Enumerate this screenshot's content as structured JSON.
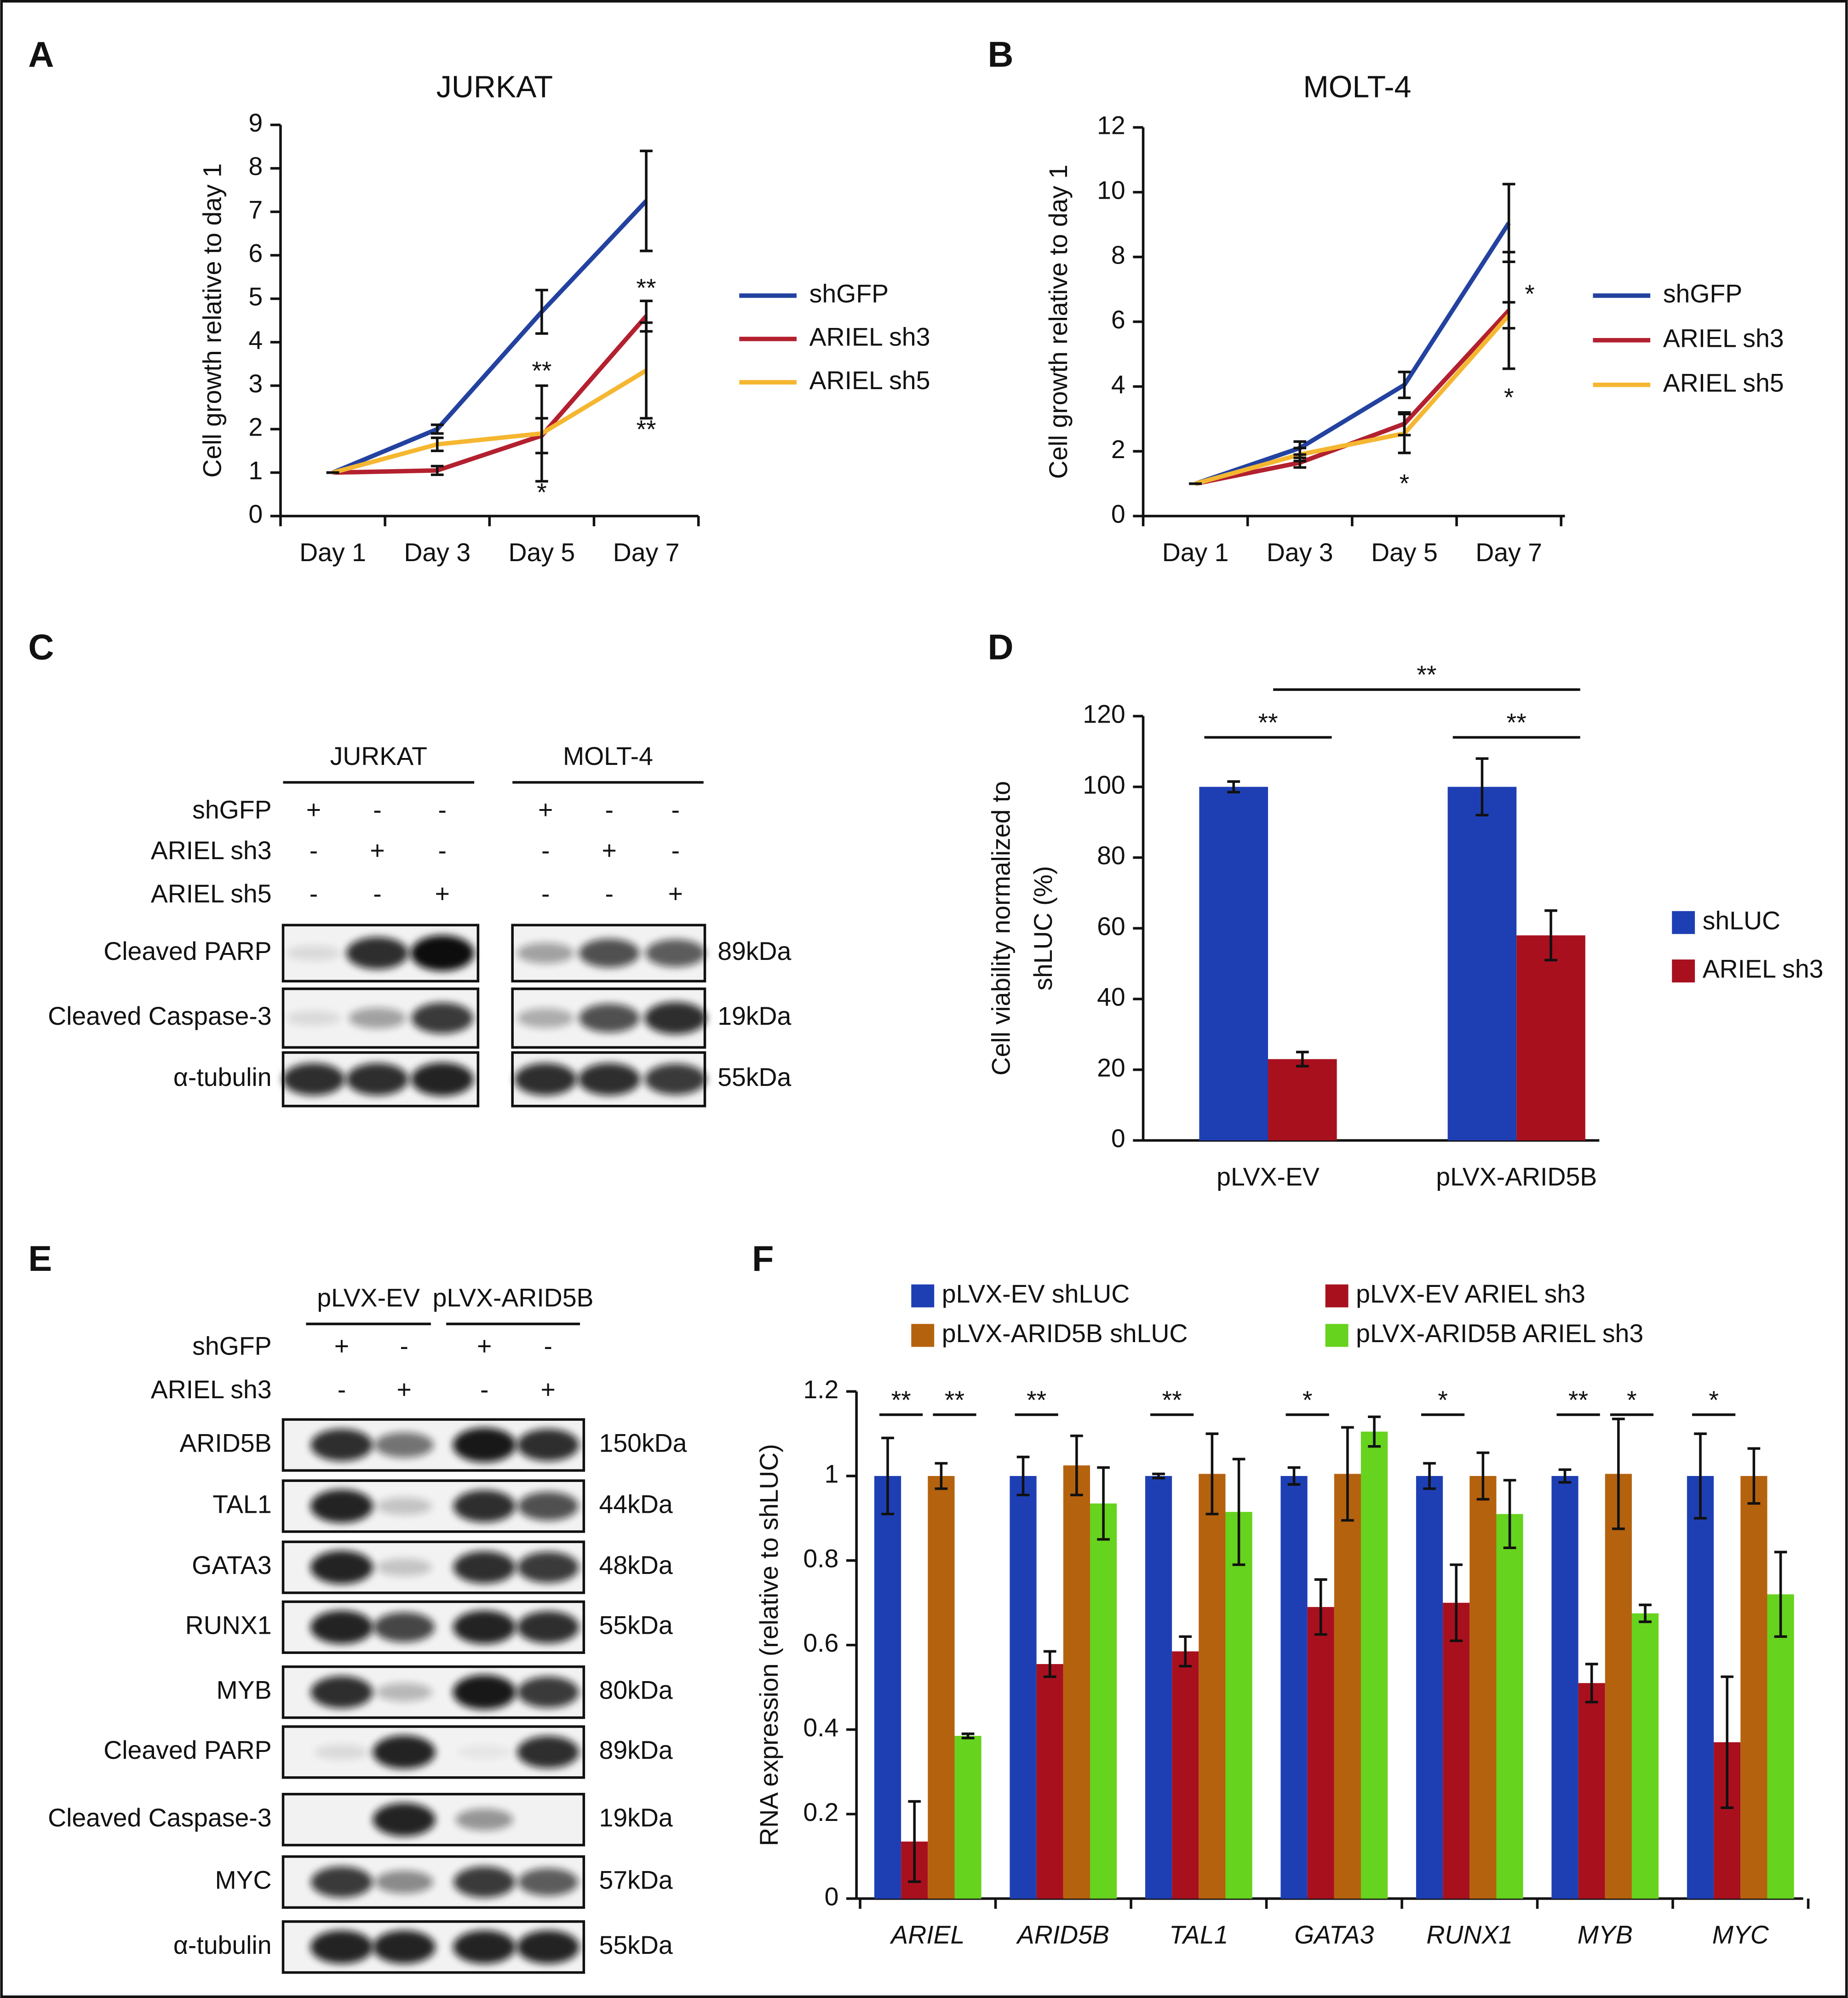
{
  "chart_data": [
    {
      "panel": "A",
      "type": "line",
      "title": "JURKAT",
      "ylabel": "Cell growth relative to day 1",
      "categories": [
        "Day 1",
        "Day 3",
        "Day 5",
        "Day 7"
      ],
      "ylim": [
        0,
        9
      ],
      "yticks": [
        0,
        1,
        2,
        3,
        4,
        5,
        6,
        7,
        8,
        9
      ],
      "series": [
        {
          "name": "shGFP",
          "color": "#2342a0",
          "values": [
            1,
            2.0,
            4.7,
            7.25
          ],
          "errors": [
            0,
            0.1,
            0.5,
            1.15
          ]
        },
        {
          "name": "ARIEL sh3",
          "color": "#b3202f",
          "values": [
            1,
            1.05,
            1.85,
            4.6
          ],
          "errors": [
            0,
            0.1,
            0.4,
            0.35
          ]
        },
        {
          "name": "ARIEL sh5",
          "color": "#f5b731",
          "values": [
            1,
            1.65,
            1.9,
            3.35
          ],
          "errors": [
            0,
            0.15,
            1.1,
            1.1
          ]
        }
      ],
      "annotations": [
        {
          "text": "**",
          "x": 2,
          "y": 3.3
        },
        {
          "text": "*",
          "x": 2,
          "y": 0.5
        },
        {
          "text": "**",
          "x": 3,
          "y": 5.2
        },
        {
          "text": "**",
          "x": 3,
          "y": 1.95
        }
      ]
    },
    {
      "panel": "B",
      "type": "line",
      "title": "MOLT-4",
      "ylabel": "Cell growth relative to day 1",
      "categories": [
        "Day 1",
        "Day 3",
        "Day 5",
        "Day 7"
      ],
      "ylim": [
        0,
        12
      ],
      "yticks": [
        0,
        2,
        4,
        6,
        8,
        10,
        12
      ],
      "series": [
        {
          "name": "shGFP",
          "color": "#2342a0",
          "values": [
            1,
            2.1,
            4.05,
            9.05
          ],
          "errors": [
            0,
            0.2,
            0.4,
            1.2
          ]
        },
        {
          "name": "ARIEL sh3",
          "color": "#b3202f",
          "values": [
            1,
            1.65,
            2.85,
            6.35
          ],
          "errors": [
            0,
            0.15,
            0.35,
            1.8
          ]
        },
        {
          "name": "ARIEL sh5",
          "color": "#f5b731",
          "values": [
            1,
            1.9,
            2.55,
            6.2
          ],
          "errors": [
            0,
            0.2,
            0.6,
            0.4
          ]
        }
      ],
      "annotations": [
        {
          "text": "*",
          "x": 3.2,
          "y": 6.8
        },
        {
          "text": "*",
          "x": 3,
          "y": 3.6
        },
        {
          "text": "*",
          "x": 2,
          "y": 0.95
        }
      ]
    },
    {
      "panel": "D",
      "type": "bar",
      "ylabel": [
        "Cell viability normalized to",
        "shLUC (%)"
      ],
      "categories": [
        "pLVX-EV",
        "pLVX-ARID5B"
      ],
      "ylim": [
        0,
        120
      ],
      "yticks": [
        0,
        20,
        40,
        60,
        80,
        100,
        120
      ],
      "series": [
        {
          "name": "shLUC",
          "color": "#1e3fb4",
          "values": [
            100,
            100
          ],
          "errors": [
            1.5,
            8
          ]
        },
        {
          "name": "ARIEL sh3",
          "color": "#a8101e",
          "values": [
            23,
            58
          ],
          "errors": [
            2,
            7
          ]
        }
      ],
      "brackets": [
        {
          "text": "**",
          "from": [
            0,
            0
          ],
          "to": [
            0,
            1
          ],
          "y": 114
        },
        {
          "text": "**",
          "from": [
            1,
            0
          ],
          "to": [
            1,
            1
          ],
          "y": 114
        },
        {
          "text": "**",
          "from": [
            0,
            1
          ],
          "to": [
            1,
            1
          ],
          "y": 127.5
        }
      ]
    },
    {
      "panel": "F",
      "type": "bar",
      "ylabel": "RNA expression (relative to shLUC)",
      "italic_categories": true,
      "categories": [
        "ARIEL",
        "ARID5B",
        "TAL1",
        "GATA3",
        "RUNX1",
        "MYB",
        "MYC"
      ],
      "ylim": [
        0,
        1.2
      ],
      "yticks": [
        0,
        0.2,
        0.4,
        0.6,
        0.8,
        1,
        1.2
      ],
      "series": [
        {
          "name": "pLVX-EV shLUC",
          "color": "#1e3fb4",
          "values": [
            1,
            1,
            1,
            1,
            1,
            1,
            1
          ],
          "errors": [
            0.09,
            0.045,
            0.005,
            0.02,
            0.03,
            0.015,
            0.1
          ]
        },
        {
          "name": "pLVX-EV ARIEL sh3",
          "color": "#a8101e",
          "values": [
            0.135,
            0.555,
            0.585,
            0.69,
            0.7,
            0.51,
            0.37
          ],
          "errors": [
            0.095,
            0.03,
            0.035,
            0.065,
            0.09,
            0.045,
            0.155
          ]
        },
        {
          "name": "pLVX-ARID5B shLUC",
          "color": "#b5620e",
          "values": [
            1,
            1.025,
            1.005,
            1.005,
            1,
            1.005,
            1
          ],
          "errors": [
            0.03,
            0.07,
            0.095,
            0.11,
            0.055,
            0.13,
            0.065
          ]
        },
        {
          "name": "pLVX-ARID5B ARIEL sh3",
          "color": "#66d31e",
          "values": [
            0.385,
            0.935,
            0.915,
            1.105,
            0.91,
            0.675,
            0.72
          ],
          "errors": [
            0.005,
            0.085,
            0.125,
            0.035,
            0.08,
            0.02,
            0.1
          ]
        }
      ],
      "brackets": [
        {
          "text": "**",
          "from": [
            0,
            0
          ],
          "to": [
            0,
            1
          ],
          "y": 1.145
        },
        {
          "text": "**",
          "from": [
            0,
            2
          ],
          "to": [
            0,
            3
          ],
          "y": 1.145
        },
        {
          "text": "**",
          "from": [
            1,
            0
          ],
          "to": [
            1,
            1
          ],
          "y": 1.145
        },
        {
          "text": "**",
          "from": [
            2,
            0
          ],
          "to": [
            2,
            1
          ],
          "y": 1.145
        },
        {
          "text": "*",
          "from": [
            3,
            0
          ],
          "to": [
            3,
            1
          ],
          "y": 1.145
        },
        {
          "text": "*",
          "from": [
            4,
            0
          ],
          "to": [
            4,
            1
          ],
          "y": 1.145
        },
        {
          "text": "**",
          "from": [
            5,
            0
          ],
          "to": [
            5,
            1
          ],
          "y": 1.145
        },
        {
          "text": "*",
          "from": [
            5,
            2
          ],
          "to": [
            5,
            3
          ],
          "y": 1.145
        },
        {
          "text": "*",
          "from": [
            6,
            0
          ],
          "to": [
            6,
            1
          ],
          "y": 1.145
        }
      ]
    }
  ],
  "blots": [
    {
      "panel": "C",
      "groups": [
        "JURKAT",
        "MOLT-4"
      ],
      "conditions": [
        {
          "name": "shGFP",
          "signs": [
            "+",
            "-",
            "-",
            "+",
            "-",
            "-"
          ]
        },
        {
          "name": "ARIEL sh3",
          "signs": [
            "-",
            "+",
            "-",
            "-",
            "+",
            "-"
          ]
        },
        {
          "name": "ARIEL sh5",
          "signs": [
            "-",
            "-",
            "+",
            "-",
            "-",
            "+"
          ]
        }
      ],
      "rows": [
        {
          "protein": "Cleaved PARP",
          "size": "89kDa"
        },
        {
          "protein": "Cleaved Caspase-3",
          "size": "19kDa"
        },
        {
          "protein": "α-tubulin",
          "size": "55kDa"
        }
      ]
    },
    {
      "panel": "E",
      "groups": [
        "pLVX-EV",
        "pLVX-ARID5B"
      ],
      "conditions": [
        {
          "name": "shGFP",
          "signs": [
            "+",
            "-",
            "+",
            "-"
          ]
        },
        {
          "name": "ARIEL sh3",
          "signs": [
            "-",
            "+",
            "-",
            "+"
          ]
        }
      ],
      "rows": [
        {
          "protein": "ARID5B",
          "size": "150kDa"
        },
        {
          "protein": "TAL1",
          "size": "44kDa"
        },
        {
          "protein": "GATA3",
          "size": "48kDa"
        },
        {
          "protein": "RUNX1",
          "size": "55kDa"
        },
        {
          "protein": "MYB",
          "size": "80kDa"
        },
        {
          "protein": "Cleaved PARP",
          "size": "89kDa"
        },
        {
          "protein": "Cleaved Caspase-3",
          "size": "19kDa"
        },
        {
          "protein": "MYC",
          "size": "57kDa"
        },
        {
          "protein": "α-tubulin",
          "size": "55kDa"
        }
      ]
    }
  ]
}
